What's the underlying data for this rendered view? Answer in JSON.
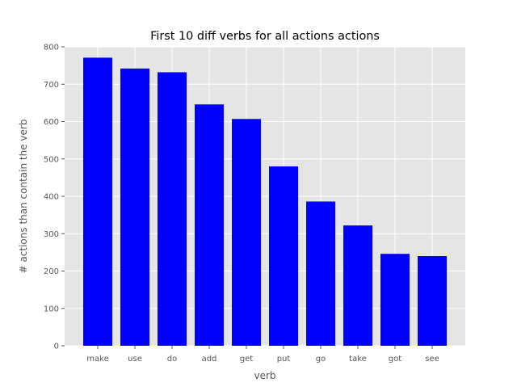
{
  "chart_data": {
    "type": "bar",
    "title": "First 10 diff verbs for all actions actions",
    "xlabel": "verb",
    "ylabel": "# actions than contain the verb",
    "categories": [
      "make",
      "use",
      "do",
      "add",
      "get",
      "put",
      "go",
      "take",
      "got",
      "see"
    ],
    "values": [
      771,
      742,
      732,
      646,
      607,
      480,
      386,
      322,
      246,
      240
    ],
    "ylim": [
      0,
      800
    ],
    "yticks": [
      0,
      100,
      200,
      300,
      400,
      500,
      600,
      700,
      800
    ],
    "grid": true,
    "legend": "none",
    "style": "ggplot"
  },
  "colors": {
    "bar": "#0000ff",
    "plot_background": "#e5e5e5",
    "grid": "#ffffff",
    "tick_text": "#555555",
    "title_text": "#000000"
  }
}
